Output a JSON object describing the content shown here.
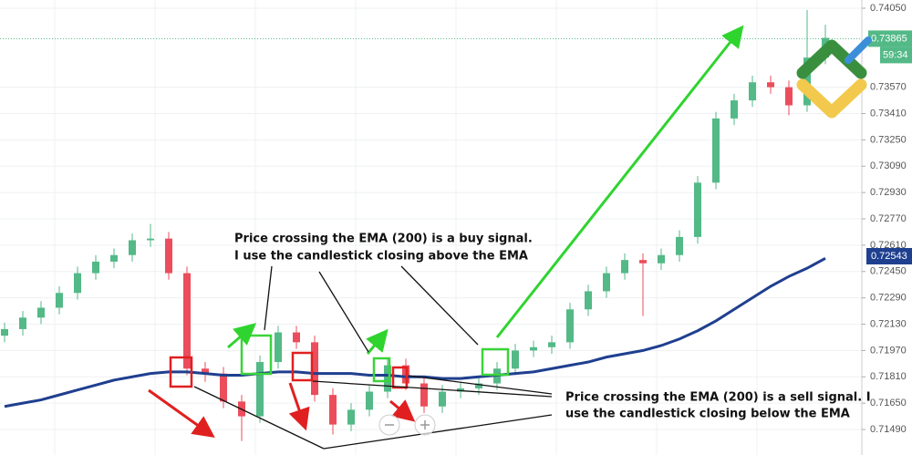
{
  "chart_data": {
    "type": "candlestick",
    "ylim": [
      0.71335,
      0.741
    ],
    "yticks": [
      {
        "value": 0.7405,
        "label": "0.74050"
      },
      {
        "value": 0.7357,
        "label": "0.73570"
      },
      {
        "value": 0.7341,
        "label": "0.73410"
      },
      {
        "value": 0.7325,
        "label": "0.73250"
      },
      {
        "value": 0.7309,
        "label": "0.73090"
      },
      {
        "value": 0.7293,
        "label": "0.72930"
      },
      {
        "value": 0.7277,
        "label": "0.72770"
      },
      {
        "value": 0.7261,
        "label": "0.72610"
      },
      {
        "value": 0.7245,
        "label": "0.72450"
      },
      {
        "value": 0.7229,
        "label": "0.72290"
      },
      {
        "value": 0.7213,
        "label": "0.72130"
      },
      {
        "value": 0.7197,
        "label": "0.71970"
      },
      {
        "value": 0.7181,
        "label": "0.71810"
      },
      {
        "value": 0.7165,
        "label": "0.71650"
      },
      {
        "value": 0.7149,
        "label": "0.71490"
      }
    ],
    "grid": true,
    "up_color": "#53b987",
    "down_color": "#eb4d5c",
    "open": [
      0.7206,
      0.721,
      0.7217,
      0.7223,
      0.7232,
      0.7244,
      0.7251,
      0.7255,
      0.7264,
      0.7265,
      0.7244,
      0.7186,
      0.7183,
      0.7166,
      0.7157,
      0.719,
      0.7208,
      0.7202,
      0.717,
      0.7152,
      0.7161,
      0.7172,
      0.7188,
      0.7177,
      0.7163,
      0.7172,
      0.7174,
      0.7177,
      0.7186,
      0.7197,
      0.7199,
      0.7202,
      0.7222,
      0.7233,
      0.7244,
      0.7252,
      0.725,
      0.7255,
      0.7266,
      0.7299,
      0.7338,
      0.7349,
      0.736,
      0.7357,
      0.7346,
      0.7375
    ],
    "high": [
      0.7214,
      0.7221,
      0.7227,
      0.7236,
      0.7248,
      0.7255,
      0.7259,
      0.7268,
      0.7274,
      0.7269,
      0.7248,
      0.719,
      0.7187,
      0.717,
      0.7194,
      0.7212,
      0.7212,
      0.7206,
      0.7174,
      0.7165,
      0.7176,
      0.7192,
      0.7192,
      0.7181,
      0.7176,
      0.7178,
      0.7181,
      0.719,
      0.7201,
      0.7203,
      0.7206,
      0.7226,
      0.7237,
      0.7248,
      0.7256,
      0.7256,
      0.7259,
      0.727,
      0.7303,
      0.7342,
      0.7353,
      0.7364,
      0.7364,
      0.7361,
      0.7404,
      0.7395
    ],
    "low": [
      0.7202,
      0.7206,
      0.7213,
      0.7219,
      0.7228,
      0.724,
      0.7247,
      0.7251,
      0.726,
      0.724,
      0.7182,
      0.7178,
      0.7162,
      0.7142,
      0.7153,
      0.7186,
      0.7198,
      0.7166,
      0.7146,
      0.7148,
      0.7157,
      0.7168,
      0.7173,
      0.7159,
      0.7159,
      0.7168,
      0.717,
      0.7173,
      0.7182,
      0.7193,
      0.7195,
      0.7198,
      0.7218,
      0.7229,
      0.724,
      0.7218,
      0.7246,
      0.7251,
      0.7262,
      0.7295,
      0.7334,
      0.7345,
      0.7353,
      0.734,
      0.7342,
      0.7371
    ],
    "close": [
      0.721,
      0.7217,
      0.7223,
      0.7232,
      0.7244,
      0.7251,
      0.7255,
      0.7264,
      0.7265,
      0.7244,
      0.7186,
      0.7183,
      0.7166,
      0.7157,
      0.719,
      0.7208,
      0.7202,
      0.717,
      0.7152,
      0.7161,
      0.7172,
      0.7188,
      0.7177,
      0.7163,
      0.7172,
      0.7174,
      0.7177,
      0.7186,
      0.7197,
      0.7199,
      0.7202,
      0.7222,
      0.7233,
      0.7244,
      0.7252,
      0.725,
      0.7255,
      0.7266,
      0.7299,
      0.7338,
      0.7349,
      0.736,
      0.7357,
      0.7346,
      0.7375,
      0.7387
    ],
    "ema": {
      "color": "#1f3f8f",
      "values": [
        0.7163,
        0.7165,
        0.7167,
        0.717,
        0.7173,
        0.7176,
        0.7179,
        0.7181,
        0.7183,
        0.7184,
        0.7184,
        0.7183,
        0.7182,
        0.7182,
        0.7183,
        0.7184,
        0.7184,
        0.7183,
        0.7183,
        0.7183,
        0.7182,
        0.7182,
        0.7181,
        0.7181,
        0.718,
        0.718,
        0.7181,
        0.7182,
        0.7183,
        0.7184,
        0.7186,
        0.7188,
        0.719,
        0.7193,
        0.7195,
        0.7197,
        0.72,
        0.7204,
        0.7209,
        0.7215,
        0.7222,
        0.7229,
        0.7236,
        0.7242,
        0.7247,
        0.7253
      ]
    },
    "last_price": {
      "value": 0.73865,
      "label": "0.73865",
      "color": "#53b987"
    },
    "countdown": "59:34",
    "ema_price": {
      "value": 0.72543,
      "label": "0.72543"
    },
    "annotations": {
      "buy": [
        "Price crossing the EMA (200) is a buy signal.",
        "I use the candlestick closing above the EMA"
      ],
      "sell": [
        "Price crossing the EMA (200) is a sell signal. I",
        "use the candlestick closing below the EMA"
      ]
    }
  }
}
